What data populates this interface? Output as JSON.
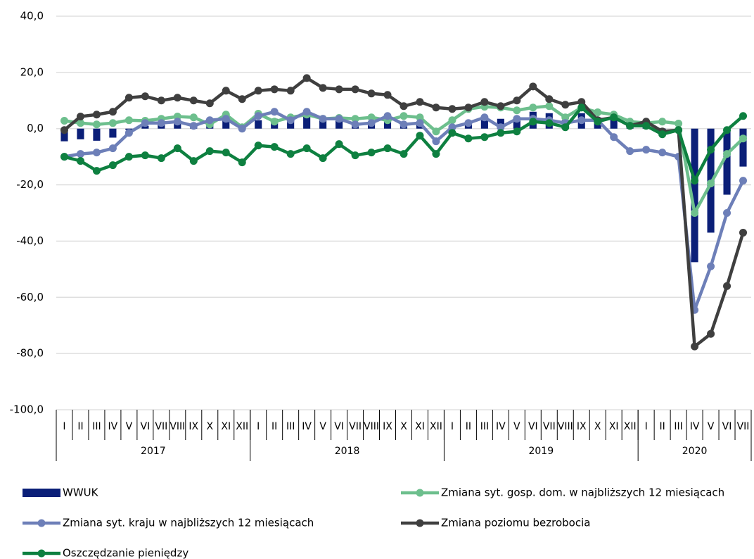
{
  "chart_data": {
    "type": "combo",
    "categories": [
      "I",
      "II",
      "III",
      "IV",
      "V",
      "VI",
      "VII",
      "VIII",
      "IX",
      "X",
      "XI",
      "XII",
      "I",
      "II",
      "III",
      "IV",
      "V",
      "VI",
      "VII",
      "VIII",
      "IX",
      "X",
      "XI",
      "XII",
      "I",
      "II",
      "III",
      "IV",
      "V",
      "VI",
      "VII",
      "VIII",
      "IX",
      "X",
      "XI",
      "XII",
      "I",
      "II",
      "III",
      "IV",
      "V",
      "VI",
      "VII"
    ],
    "category_groups": [
      {
        "label": "2017",
        "count": 12
      },
      {
        "label": "2018",
        "count": 12
      },
      {
        "label": "2019",
        "count": 12
      },
      {
        "label": "2020",
        "count": 7
      }
    ],
    "ylim": [
      -100,
      40
    ],
    "yticks": [
      {
        "value": -100,
        "label": "-100,0"
      },
      {
        "value": -80,
        "label": "-80,0"
      },
      {
        "value": -60,
        "label": "-60,0"
      },
      {
        "value": -40,
        "label": "-40,0"
      },
      {
        "value": -20,
        "label": "-20,0"
      },
      {
        "value": 0,
        "label": "0,0"
      },
      {
        "value": 20,
        "label": "20,0"
      },
      {
        "value": 40,
        "label": "40,0"
      }
    ],
    "grid": true,
    "series": [
      {
        "name": "WWUK",
        "type": "bar",
        "color": "#0b1f78",
        "values": [
          -4.5,
          -3.8,
          -4.3,
          -3.2,
          -0.5,
          1.0,
          1.5,
          2.5,
          1.5,
          1.5,
          3.0,
          0.5,
          3.0,
          3.5,
          2.5,
          4.5,
          3.0,
          3.0,
          2.0,
          2.5,
          3.5,
          2.0,
          2.5,
          -0.5,
          1.0,
          2.0,
          3.0,
          3.5,
          3.5,
          6.0,
          5.5,
          3.0,
          5.5,
          4.0,
          3.5,
          1.0,
          0.5,
          -0.5,
          -1.0,
          -47.5,
          -37.0,
          -23.5,
          -13.5
        ]
      },
      {
        "name": "Zmiana syt. gosp. dom. w najbliższych 12 miesiącach",
        "type": "line",
        "color": "#6dbf8d",
        "values": [
          2.8,
          2.0,
          1.5,
          2.0,
          3.0,
          2.8,
          3.5,
          4.3,
          4.0,
          1.5,
          5.0,
          0.5,
          5.3,
          2.5,
          4.0,
          5.0,
          3.5,
          3.8,
          3.5,
          4.0,
          3.0,
          4.5,
          4.0,
          -1.0,
          3.0,
          7.0,
          7.8,
          7.5,
          6.5,
          7.5,
          8.0,
          4.0,
          7.5,
          5.8,
          5.0,
          2.5,
          2.0,
          2.5,
          1.8,
          -30.0,
          -19.5,
          -9.0,
          -3.5
        ]
      },
      {
        "name": "Zmiana syt. kraju w najbliższych 12 miesiącach",
        "type": "line",
        "color": "#6d7fb8",
        "values": [
          -10.0,
          -9.0,
          -8.5,
          -7.0,
          -1.5,
          2.0,
          2.0,
          2.5,
          1.0,
          3.0,
          3.5,
          0.0,
          4.5,
          6.0,
          3.0,
          6.0,
          3.5,
          3.5,
          1.5,
          2.0,
          4.5,
          1.5,
          2.0,
          -4.5,
          0.5,
          2.0,
          4.0,
          0.5,
          3.5,
          3.5,
          3.0,
          2.0,
          3.0,
          3.0,
          -3.0,
          -8.0,
          -7.5,
          -8.5,
          -10.0,
          -64.5,
          -49.0,
          -30.0,
          -18.5
        ]
      },
      {
        "name": "Zmiana poziomu bezrobocia",
        "type": "line",
        "color": "#3f3f3f",
        "values": [
          -0.5,
          4.3,
          5.0,
          6.0,
          11.0,
          11.5,
          10.0,
          11.0,
          10.0,
          9.0,
          13.5,
          10.5,
          13.5,
          14.0,
          13.5,
          18.0,
          14.5,
          14.0,
          14.0,
          12.5,
          12.0,
          8.0,
          9.5,
          7.5,
          7.0,
          7.5,
          9.5,
          8.0,
          10.0,
          15.0,
          10.5,
          8.5,
          9.5,
          3.0,
          4.0,
          1.0,
          2.5,
          -1.0,
          -0.5,
          -77.5,
          -73.0,
          -56.0,
          -37.0
        ]
      },
      {
        "name": "Oszczędzanie pieniędzy",
        "type": "line",
        "color": "#0e8040",
        "values": [
          -10.0,
          -11.5,
          -15.0,
          -13.0,
          -10.0,
          -9.5,
          -10.5,
          -7.0,
          -11.5,
          -8.0,
          -8.5,
          -12.0,
          -6.0,
          -6.5,
          -9.0,
          -7.0,
          -10.5,
          -5.5,
          -9.5,
          -8.5,
          -7.0,
          -9.0,
          -2.5,
          -9.0,
          -1.5,
          -3.5,
          -3.0,
          -1.5,
          -1.0,
          2.5,
          2.0,
          0.5,
          7.5,
          2.5,
          4.0,
          1.0,
          1.0,
          -2.0,
          -0.5,
          -18.5,
          -7.5,
          -0.5,
          4.5
        ]
      }
    ]
  }
}
